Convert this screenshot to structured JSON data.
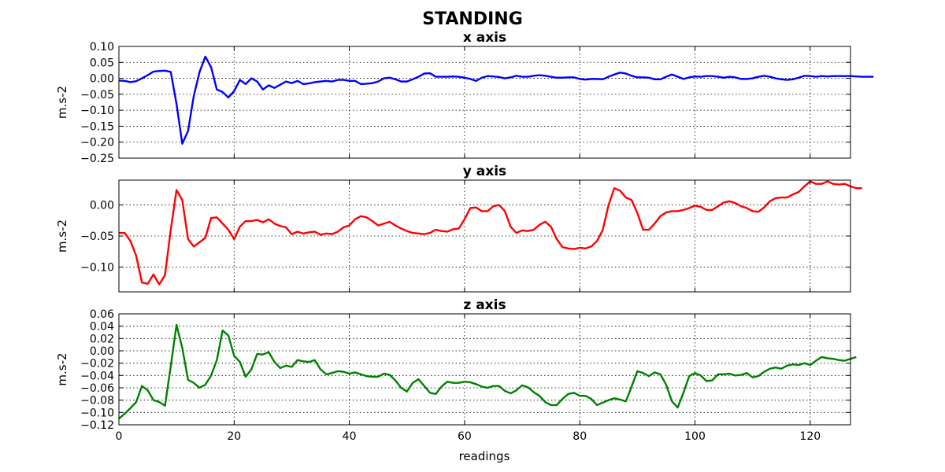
{
  "figure": {
    "title": "STANDING",
    "xlabel": "readings"
  },
  "chart_data": [
    {
      "type": "line",
      "title": "x axis",
      "xlabel": "",
      "ylabel": "m.s-2",
      "xlim": [
        0,
        127
      ],
      "ylim": [
        -0.25,
        0.1
      ],
      "yticks": [
        -0.25,
        -0.2,
        -0.15,
        -0.1,
        -0.05,
        0.0,
        0.05,
        0.1
      ],
      "ytick_labels": [
        "−0.25",
        "−0.20",
        "−0.15",
        "−0.10",
        "−0.05",
        "0.00",
        "0.05",
        "0.10"
      ],
      "xticks": [
        0,
        20,
        40,
        60,
        80,
        100,
        120
      ],
      "xtick_labels": [],
      "grid": true,
      "color": "#0000ff",
      "series": [
        {
          "values": [
            -0.007,
            -0.008,
            -0.012,
            -0.009,
            0.0,
            0.01,
            0.021,
            0.023,
            0.024,
            0.02,
            -0.08,
            -0.205,
            -0.165,
            -0.055,
            0.02,
            0.068,
            0.035,
            -0.035,
            -0.043,
            -0.06,
            -0.04,
            -0.005,
            -0.018,
            0.0,
            -0.01,
            -0.035,
            -0.022,
            -0.03,
            -0.02,
            -0.01,
            -0.015,
            -0.008,
            -0.018,
            -0.016,
            -0.012,
            -0.01,
            -0.008,
            -0.01,
            -0.005,
            -0.005,
            -0.008,
            -0.008,
            -0.018,
            -0.017,
            -0.015,
            -0.01,
            0.0,
            0.002,
            -0.003,
            -0.01,
            -0.01,
            -0.003,
            0.005,
            0.015,
            0.016,
            0.005,
            0.005,
            0.005,
            0.006,
            0.005,
            0.002,
            -0.002,
            -0.008,
            0.002,
            0.007,
            0.006,
            0.004,
            0.0,
            0.003,
            0.008,
            0.005,
            0.005,
            0.008,
            0.01,
            0.008,
            0.005,
            0.002,
            0.002,
            0.003,
            0.003,
            -0.002,
            -0.004,
            -0.002,
            -0.002,
            -0.003,
            0.005,
            0.012,
            0.018,
            0.015,
            0.008,
            0.003,
            0.003,
            0.002,
            -0.003,
            -0.003,
            0.005,
            0.012,
            0.005,
            -0.002,
            0.003,
            0.006,
            0.005,
            0.007,
            0.007,
            0.005,
            0.002,
            0.005,
            0.003,
            -0.002,
            -0.002,
            0.0,
            0.005,
            0.008,
            0.005,
            0.0,
            -0.003,
            -0.005,
            -0.003,
            0.002,
            0.008,
            0.007,
            0.005,
            0.007,
            0.006,
            0.007,
            0.007,
            0.007,
            0.007,
            0.006,
            0.005,
            0.005,
            0.005
          ]
        }
      ]
    },
    {
      "type": "line",
      "title": "y axis",
      "xlabel": "",
      "ylabel": "m.s-2",
      "xlim": [
        0,
        127
      ],
      "ylim": [
        -0.14,
        0.04
      ],
      "yticks": [
        -0.1,
        -0.05,
        0.0
      ],
      "ytick_labels": [
        "−0.10",
        "−0.05",
        "0.00"
      ],
      "xticks": [
        0,
        20,
        40,
        60,
        80,
        100,
        120
      ],
      "xtick_labels": [],
      "grid": true,
      "color": "#ff0000",
      "series": [
        {
          "values": [
            -0.045,
            -0.045,
            -0.058,
            -0.082,
            -0.125,
            -0.127,
            -0.112,
            -0.128,
            -0.113,
            -0.04,
            0.024,
            0.008,
            -0.055,
            -0.067,
            -0.06,
            -0.053,
            -0.021,
            -0.02,
            -0.03,
            -0.04,
            -0.055,
            -0.035,
            -0.026,
            -0.026,
            -0.024,
            -0.028,
            -0.023,
            -0.03,
            -0.034,
            -0.036,
            -0.047,
            -0.043,
            -0.046,
            -0.044,
            -0.043,
            -0.048,
            -0.046,
            -0.047,
            -0.043,
            -0.036,
            -0.033,
            -0.023,
            -0.018,
            -0.02,
            -0.026,
            -0.033,
            -0.03,
            -0.027,
            -0.033,
            -0.038,
            -0.042,
            -0.045,
            -0.046,
            -0.047,
            -0.045,
            -0.04,
            -0.042,
            -0.043,
            -0.039,
            -0.038,
            -0.023,
            -0.005,
            -0.004,
            -0.01,
            -0.01,
            -0.002,
            0.0,
            -0.01,
            -0.035,
            -0.045,
            -0.041,
            -0.042,
            -0.04,
            -0.032,
            -0.027,
            -0.035,
            -0.055,
            -0.068,
            -0.07,
            -0.071,
            -0.069,
            -0.07,
            -0.067,
            -0.058,
            -0.04,
            0.0,
            0.027,
            0.023,
            0.012,
            0.008,
            -0.013,
            -0.04,
            -0.04,
            -0.03,
            -0.018,
            -0.012,
            -0.01,
            -0.01,
            -0.008,
            -0.005,
            -0.001,
            -0.003,
            -0.008,
            -0.008,
            -0.002,
            0.004,
            0.006,
            0.003,
            -0.002,
            -0.005,
            -0.01,
            -0.011,
            -0.004,
            0.006,
            0.011,
            0.012,
            0.012,
            0.017,
            0.021,
            0.03,
            0.038,
            0.034,
            0.034,
            0.038,
            0.034,
            0.033,
            0.034,
            0.03,
            0.027,
            0.027
          ]
        }
      ]
    },
    {
      "type": "line",
      "title": "z axis",
      "xlabel": "readings",
      "ylabel": "m.s-2",
      "xlim": [
        0,
        127
      ],
      "ylim": [
        -0.12,
        0.06
      ],
      "yticks": [
        -0.12,
        -0.1,
        -0.08,
        -0.06,
        -0.04,
        -0.02,
        0.0,
        0.02,
        0.04,
        0.06
      ],
      "ytick_labels": [
        "−0.12",
        "−0.10",
        "−0.08",
        "−0.06",
        "−0.04",
        "−0.02",
        "0.00",
        "0.02",
        "0.04",
        "0.06"
      ],
      "xticks": [
        0,
        20,
        40,
        60,
        80,
        100,
        120
      ],
      "xtick_labels": [
        "0",
        "20",
        "40",
        "60",
        "80",
        "100",
        "120"
      ],
      "grid": true,
      "color": "#008000",
      "series": [
        {
          "values": [
            -0.11,
            -0.102,
            -0.093,
            -0.083,
            -0.057,
            -0.064,
            -0.08,
            -0.083,
            -0.089,
            -0.025,
            0.042,
            0.005,
            -0.047,
            -0.052,
            -0.06,
            -0.055,
            -0.04,
            -0.015,
            0.033,
            0.025,
            -0.008,
            -0.018,
            -0.042,
            -0.03,
            -0.005,
            -0.006,
            -0.002,
            -0.018,
            -0.028,
            -0.024,
            -0.026,
            -0.015,
            -0.017,
            -0.018,
            -0.015,
            -0.03,
            -0.038,
            -0.036,
            -0.033,
            -0.034,
            -0.037,
            -0.035,
            -0.038,
            -0.041,
            -0.042,
            -0.042,
            -0.037,
            -0.039,
            -0.048,
            -0.06,
            -0.066,
            -0.052,
            -0.046,
            -0.057,
            -0.068,
            -0.07,
            -0.058,
            -0.05,
            -0.052,
            -0.052,
            -0.05,
            -0.051,
            -0.054,
            -0.058,
            -0.06,
            -0.057,
            -0.057,
            -0.065,
            -0.069,
            -0.064,
            -0.056,
            -0.059,
            -0.067,
            -0.073,
            -0.083,
            -0.088,
            -0.088,
            -0.078,
            -0.07,
            -0.068,
            -0.073,
            -0.073,
            -0.078,
            -0.088,
            -0.084,
            -0.08,
            -0.077,
            -0.079,
            -0.082,
            -0.058,
            -0.033,
            -0.036,
            -0.041,
            -0.035,
            -0.038,
            -0.055,
            -0.082,
            -0.092,
            -0.068,
            -0.041,
            -0.036,
            -0.04,
            -0.049,
            -0.048,
            -0.038,
            -0.038,
            -0.037,
            -0.04,
            -0.039,
            -0.036,
            -0.043,
            -0.041,
            -0.034,
            -0.029,
            -0.027,
            -0.029,
            -0.024,
            -0.022,
            -0.023,
            -0.02,
            -0.023,
            -0.016,
            -0.01,
            -0.012,
            -0.013,
            -0.015,
            -0.016,
            -0.013,
            -0.01
          ]
        }
      ]
    }
  ]
}
